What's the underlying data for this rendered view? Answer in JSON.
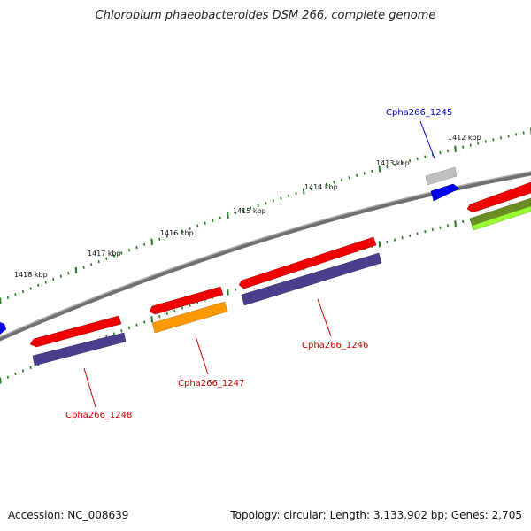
{
  "title": "Chlorobium phaeobacteroides DSM 266, complete genome",
  "accession": "Accession: NC_008639",
  "topology": "Topology: circular; Length: 3,133,902 bp; Genes: 2,705",
  "colors": {
    "backbone": "#808080",
    "tick": "#1f7a1f",
    "gene_red": "#ee0000",
    "gene_purple": "#4a3f8c",
    "gene_orange": "#ff9900",
    "gene_blue": "#0000ee",
    "gene_grey": "#b0b0b0",
    "gene_olive": "#6b8e23",
    "gene_lime": "#99ff33",
    "label_red": "#cc0000",
    "label_blue": "#0000cc"
  },
  "scale_labels": [
    "1412 kbp",
    "1413 kbp",
    "1414 kbp",
    "1415 kbp",
    "1416 kbp",
    "1417 kbp",
    "1418 kbp"
  ],
  "gene_labels": [
    {
      "id": "gl1",
      "text": "Cpha266_1245",
      "color": "#0000cc"
    },
    {
      "id": "gl2",
      "text": "Cpha266_1246",
      "color": "#cc0000"
    },
    {
      "id": "gl3",
      "text": "Cpha266_1247",
      "color": "#cc0000"
    },
    {
      "id": "gl4",
      "text": "Cpha266_1248",
      "color": "#cc0000"
    }
  ]
}
